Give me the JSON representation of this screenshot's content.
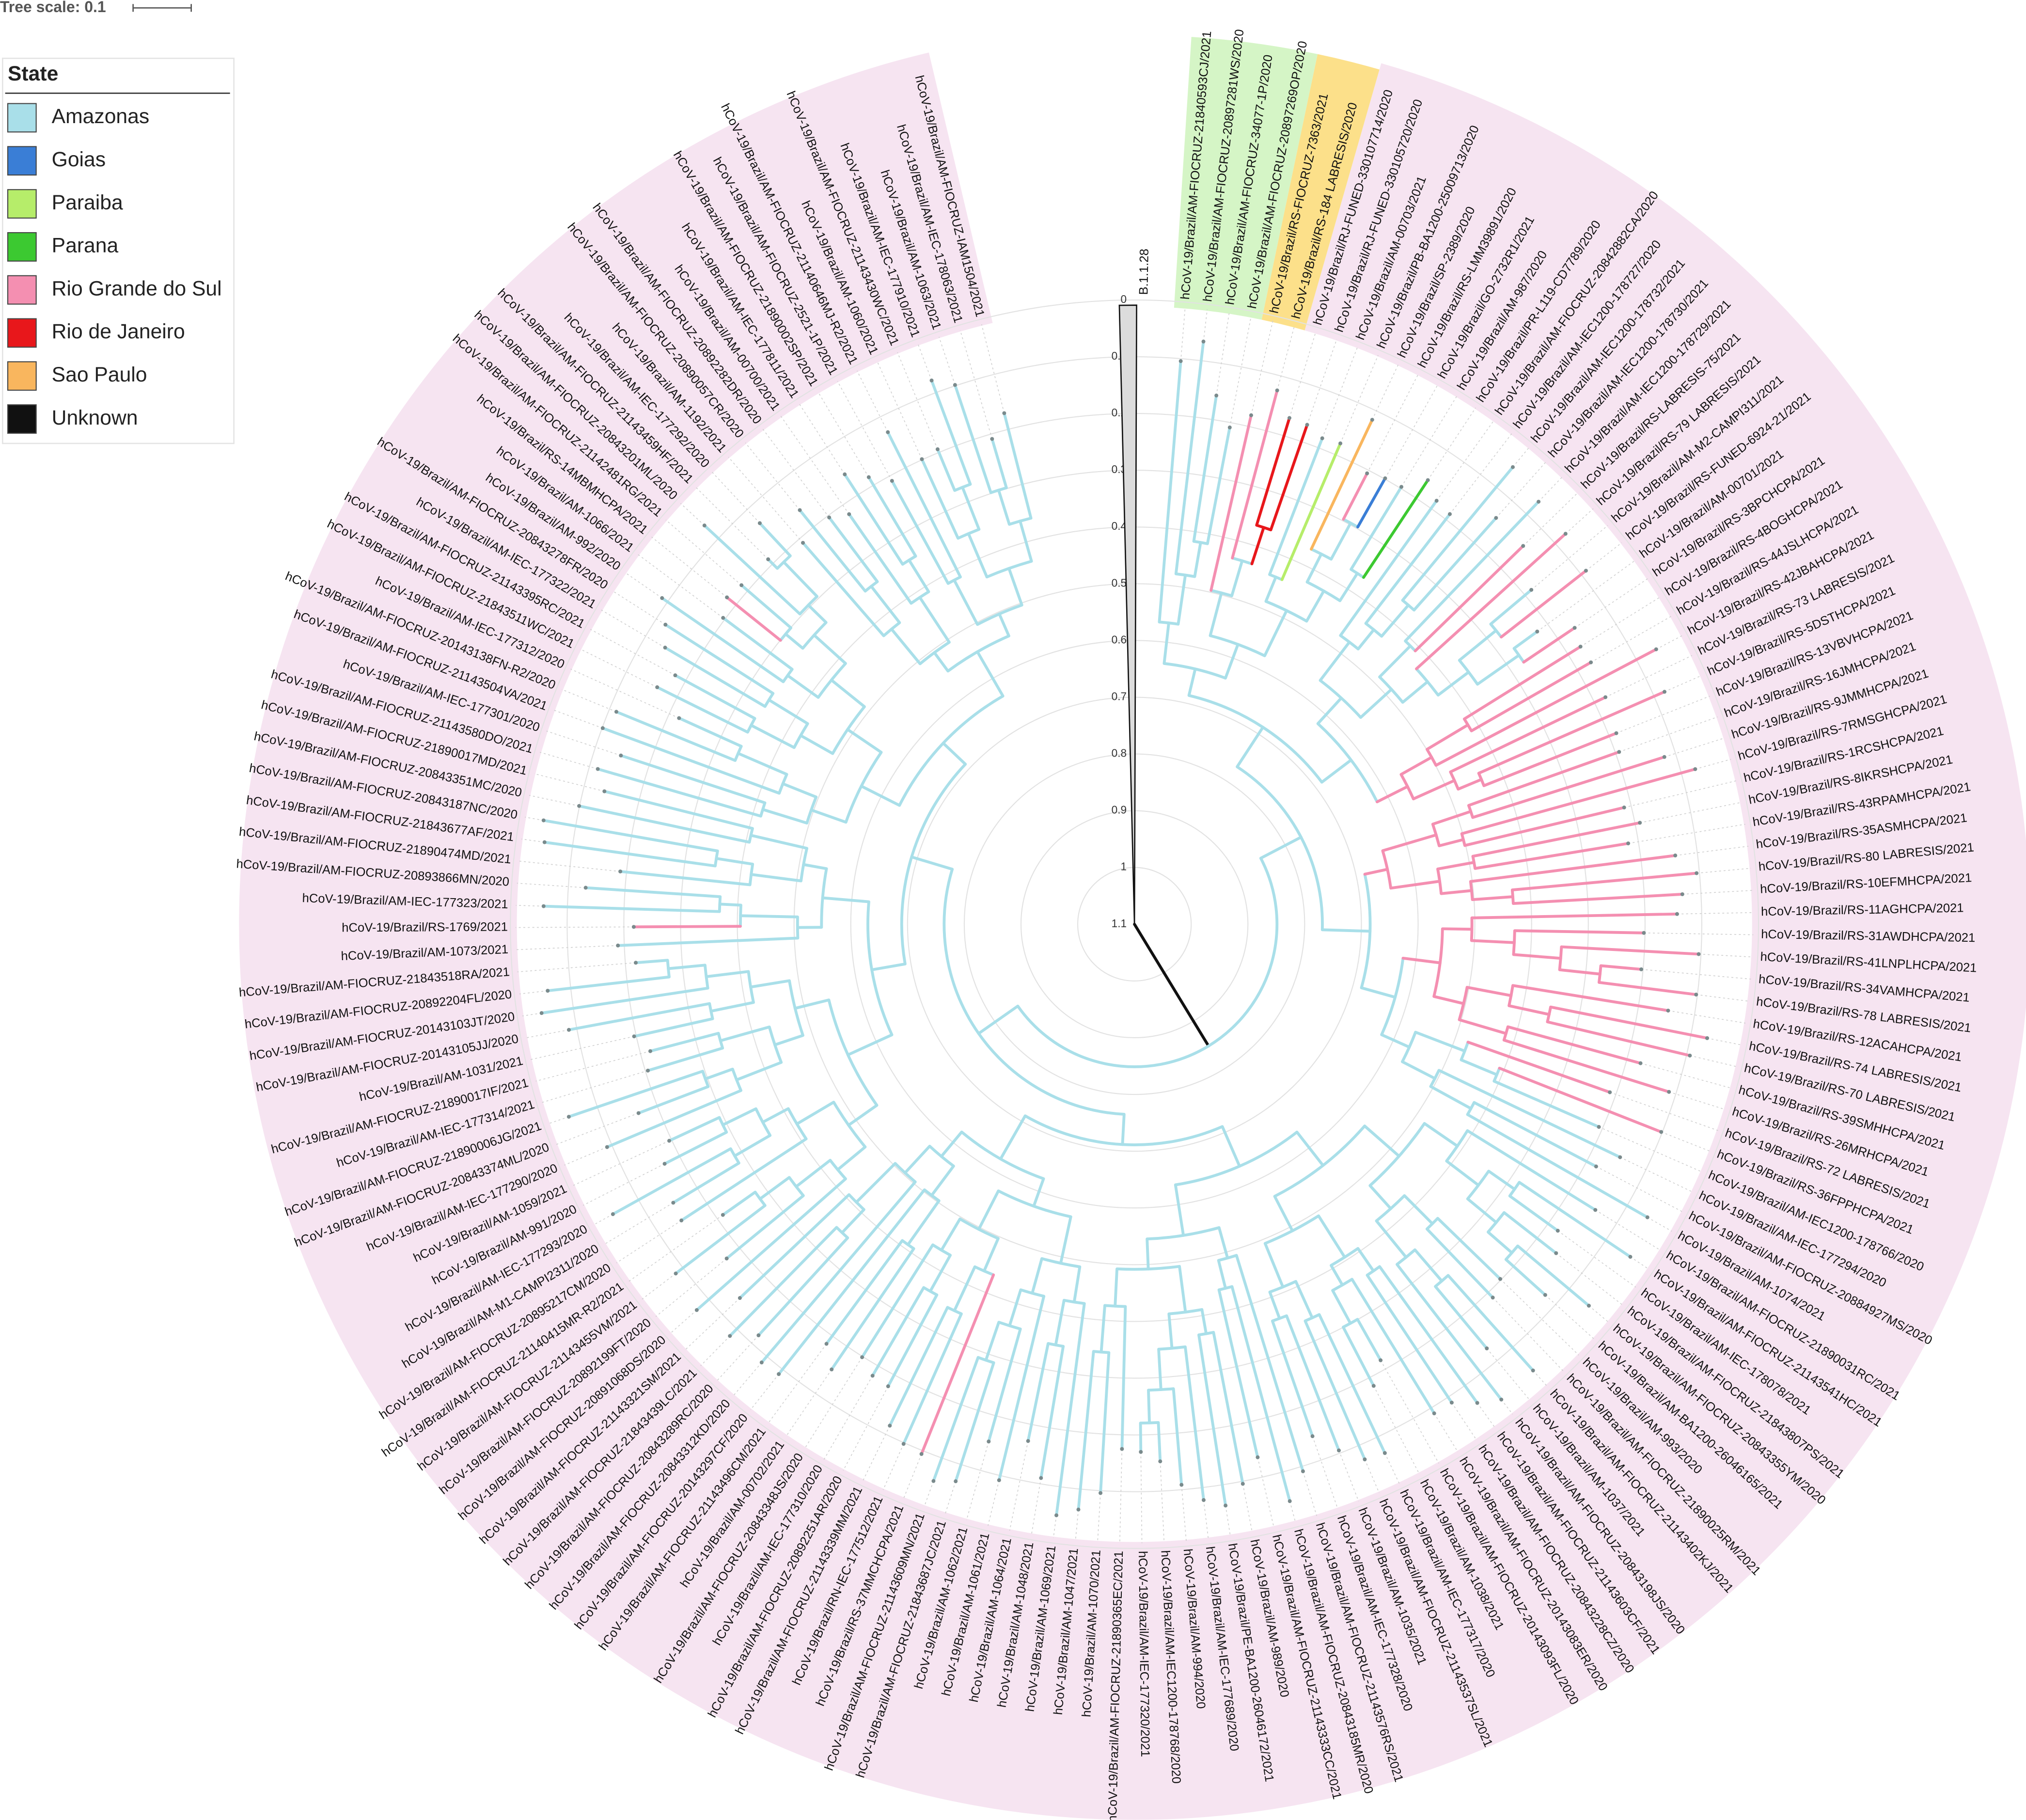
{
  "tree_scale": "Tree scale: 0.1",
  "legend": {
    "title": "State",
    "items": [
      {
        "label": "Amazonas",
        "color": "#a9dfe9"
      },
      {
        "label": "Goias",
        "color": "#3a7ed6"
      },
      {
        "label": "Paraiba",
        "color": "#b6ed6a"
      },
      {
        "label": "Parana",
        "color": "#3cc931"
      },
      {
        "label": "Rio Grande do Sul",
        "color": "#f48fb1"
      },
      {
        "label": "Rio de Janeiro",
        "color": "#e8171b"
      },
      {
        "label": "Sao Paulo",
        "color": "#f9b65e"
      },
      {
        "label": "Unknown",
        "color": "#111111"
      }
    ]
  },
  "outgroup": "B.1.1.28",
  "axis": {
    "range": [
      0,
      1.1
    ],
    "ticks": [
      0,
      0.1,
      0.2,
      0.3,
      0.4,
      0.5,
      0.6,
      0.7,
      0.8,
      0.9,
      1,
      1.1
    ]
  },
  "leaves": [
    {
      "label": "hCoV-19/Brazil/AM-FIOCRUZ-21840593CJ/2021",
      "color": "#a9dfe9"
    },
    {
      "label": "hCoV-19/Brazil/AM-FIOCRUZ-20897281WS/2020",
      "color": "#a9dfe9"
    },
    {
      "label": "hCoV-19/Brazil/AM-FIOCRUZ-34077-1P/2020",
      "color": "#a9dfe9"
    },
    {
      "label": "hCoV-19/Brazil/AM-FIOCRUZ-20897269OP/2020",
      "color": "#a9dfe9"
    },
    {
      "label": "hCoV-19/Brazil/RS-FIOCRUZ-7363/2021",
      "color": "#f48fb1"
    },
    {
      "label": "hCoV-19/Brazil/RS-184 LABRESIS/2020",
      "color": "#f48fb1"
    },
    {
      "label": "hCoV-19/Brazil/RJ-FUNED-330107714/2020",
      "color": "#e8171b"
    },
    {
      "label": "hCoV-19/Brazil/RJ-FUNED-330105720/2020",
      "color": "#e8171b"
    },
    {
      "label": "hCoV-19/Brazil/AM-00703/2021",
      "color": "#a9dfe9"
    },
    {
      "label": "hCoV-19/Brazil/PB-BA1200-25009713/2020",
      "color": "#b6ed6a"
    },
    {
      "label": "hCoV-19/Brazil/SP-2389/2020",
      "color": "#f9b65e"
    },
    {
      "label": "hCoV-19/Brazil/RS-LMM39891/2020",
      "color": "#f48fb1"
    },
    {
      "label": "hCoV-19/Brazil/GO-2732R1/2021",
      "color": "#3a7ed6"
    },
    {
      "label": "hCoV-19/Brazil/AM-987/2020",
      "color": "#a9dfe9"
    },
    {
      "label": "hCoV-19/Brazil/PR-L119-CD7789/2020",
      "color": "#3cc931"
    },
    {
      "label": "hCoV-19/Brazil/AM-FIOCRUZ-20842882CA/2020",
      "color": "#a9dfe9"
    },
    {
      "label": "hCoV-19/Brazil/AM-IEC1200-178727/2020",
      "color": "#a9dfe9"
    },
    {
      "label": "hCoV-19/Brazil/AM-IEC1200-178732/2021",
      "color": "#a9dfe9"
    },
    {
      "label": "hCoV-19/Brazil/AM-IEC1200-178730/2021",
      "color": "#a9dfe9"
    },
    {
      "label": "hCoV-19/Brazil/AM-IEC1200-178729/2021",
      "color": "#a9dfe9"
    },
    {
      "label": "hCoV-19/Brazil/RS-LABRESIS-75/2021",
      "color": "#f48fb1"
    },
    {
      "label": "hCoV-19/Brazil/RS-79 LABRESIS/2021",
      "color": "#f48fb1"
    },
    {
      "label": "hCoV-19/Brazil/AM-M2-CAMPI311/2021",
      "color": "#a9dfe9"
    },
    {
      "label": "hCoV-19/Brazil/RS-FUNED-6924-21/2021",
      "color": "#f48fb1"
    },
    {
      "label": "hCoV-19/Brazil/AM-00701/2021",
      "color": "#a9dfe9"
    },
    {
      "label": "hCoV-19/Brazil/RS-3BPCHCPA/2021",
      "color": "#f48fb1"
    },
    {
      "label": "hCoV-19/Brazil/RS-4BOGHCPA/2021",
      "color": "#f48fb1"
    },
    {
      "label": "hCoV-19/Brazil/RS-44JSLHCPA/2021",
      "color": "#f48fb1"
    },
    {
      "label": "hCoV-19/Brazil/RS-42JBAHCPA/2021",
      "color": "#f48fb1"
    },
    {
      "label": "hCoV-19/Brazil/RS-73 LABRESIS/2021",
      "color": "#f48fb1"
    },
    {
      "label": "hCoV-19/Brazil/RS-5DSTHCPA/2021",
      "color": "#f48fb1"
    },
    {
      "label": "hCoV-19/Brazil/RS-13VBVHCPA/2021",
      "color": "#f48fb1"
    },
    {
      "label": "hCoV-19/Brazil/RS-16JMHCPA/2021",
      "color": "#f48fb1"
    },
    {
      "label": "hCoV-19/Brazil/RS-9JMMHCPA/2021",
      "color": "#f48fb1"
    },
    {
      "label": "hCoV-19/Brazil/RS-7RMSGHCPA/2021",
      "color": "#f48fb1"
    },
    {
      "label": "hCoV-19/Brazil/RS-1RCSHCPA/2021",
      "color": "#f48fb1"
    },
    {
      "label": "hCoV-19/Brazil/RS-8IKRSHCPA/2021",
      "color": "#f48fb1"
    },
    {
      "label": "hCoV-19/Brazil/RS-43RPAMHCPA/2021",
      "color": "#f48fb1"
    },
    {
      "label": "hCoV-19/Brazil/RS-35ASMHCPA/2021",
      "color": "#f48fb1"
    },
    {
      "label": "hCoV-19/Brazil/RS-80 LABRESIS/2021",
      "color": "#f48fb1"
    },
    {
      "label": "hCoV-19/Brazil/RS-10EFMHCPA/2021",
      "color": "#f48fb1"
    },
    {
      "label": "hCoV-19/Brazil/RS-11AGHCPA/2021",
      "color": "#f48fb1"
    },
    {
      "label": "hCoV-19/Brazil/RS-31AWDHCPA/2021",
      "color": "#f48fb1"
    },
    {
      "label": "hCoV-19/Brazil/RS-41LNPLHCPA/2021",
      "color": "#f48fb1"
    },
    {
      "label": "hCoV-19/Brazil/RS-34VAMHCPA/2021",
      "color": "#f48fb1"
    },
    {
      "label": "hCoV-19/Brazil/RS-78 LABRESIS/2021",
      "color": "#f48fb1"
    },
    {
      "label": "hCoV-19/Brazil/RS-12ACAHCPA/2021",
      "color": "#f48fb1"
    },
    {
      "label": "hCoV-19/Brazil/RS-74 LABRESIS/2021",
      "color": "#f48fb1"
    },
    {
      "label": "hCoV-19/Brazil/RS-70 LABRESIS/2021",
      "color": "#f48fb1"
    },
    {
      "label": "hCoV-19/Brazil/RS-39SMHHCPA/2021",
      "color": "#f48fb1"
    },
    {
      "label": "hCoV-19/Brazil/RS-26MRHCPA/2021",
      "color": "#f48fb1"
    },
    {
      "label": "hCoV-19/Brazil/RS-72 LABRESIS/2021",
      "color": "#f48fb1"
    },
    {
      "label": "hCoV-19/Brazil/RS-36FPPHCPA/2021",
      "color": "#f48fb1"
    },
    {
      "label": "hCoV-19/Brazil/AM-IEC1200-178766/2020",
      "color": "#a9dfe9"
    },
    {
      "label": "hCoV-19/Brazil/AM-IEC-177294/2020",
      "color": "#a9dfe9"
    },
    {
      "label": "hCoV-19/Brazil/AM-FIOCRUZ-20884927MS/2020",
      "color": "#a9dfe9"
    },
    {
      "label": "hCoV-19/Brazil/AM-1074/2021",
      "color": "#a9dfe9"
    },
    {
      "label": "hCoV-19/Brazil/AM-FIOCRUZ-21890031RC/2021",
      "color": "#a9dfe9"
    },
    {
      "label": "hCoV-19/Brazil/AM-FIOCRUZ-21143541HC/2021",
      "color": "#a9dfe9"
    },
    {
      "label": "hCoV-19/Brazil/AM-IEC-178078/2021",
      "color": "#a9dfe9"
    },
    {
      "label": "hCoV-19/Brazil/AM-FIOCRUZ-21843807PS/2021",
      "color": "#a9dfe9"
    },
    {
      "label": "hCoV-19/Brazil/AM-FIOCRUZ-20843355YM/2020",
      "color": "#a9dfe9"
    },
    {
      "label": "hCoV-19/Brazil/AM-BA1200-26046165/2021",
      "color": "#a9dfe9"
    },
    {
      "label": "hCoV-19/Brazil/AM-993/2020",
      "color": "#a9dfe9"
    },
    {
      "label": "hCoV-19/Brazil/AM-FIOCRUZ-21890025RM/2021",
      "color": "#a9dfe9"
    },
    {
      "label": "hCoV-19/Brazil/AM-FIOCRUZ-21143402KJ/2021",
      "color": "#a9dfe9"
    },
    {
      "label": "hCoV-19/Brazil/AM-1037/2021",
      "color": "#a9dfe9"
    },
    {
      "label": "hCoV-19/Brazil/AM-FIOCRUZ-20843198JS/2020",
      "color": "#a9dfe9"
    },
    {
      "label": "hCoV-19/Brazil/AM-FIOCRUZ-21143603CF/2021",
      "color": "#a9dfe9"
    },
    {
      "label": "hCoV-19/Brazil/AM-FIOCRUZ-20843228CZ/2020",
      "color": "#a9dfe9"
    },
    {
      "label": "hCoV-19/Brazil/AM-FIOCRUZ-20143083ER/2020",
      "color": "#a9dfe9"
    },
    {
      "label": "hCoV-19/Brazil/AM-FIOCRUZ-20143093FL/2020",
      "color": "#a9dfe9"
    },
    {
      "label": "hCoV-19/Brazil/AM-1038/2021",
      "color": "#a9dfe9"
    },
    {
      "label": "hCoV-19/Brazil/AM-IEC-177317/2020",
      "color": "#a9dfe9"
    },
    {
      "label": "hCoV-19/Brazil/AM-FIOCRUZ-21143537SL/2021",
      "color": "#a9dfe9"
    },
    {
      "label": "hCoV-19/Brazil/AM-1035/2021",
      "color": "#a9dfe9"
    },
    {
      "label": "hCoV-19/Brazil/AM-IEC-177328/2020",
      "color": "#a9dfe9"
    },
    {
      "label": "hCoV-19/Brazil/AM-FIOCRUZ-21143576RS/2021",
      "color": "#a9dfe9"
    },
    {
      "label": "hCoV-19/Brazil/AM-FIOCRUZ-20843185MR/2020",
      "color": "#a9dfe9"
    },
    {
      "label": "hCoV-19/Brazil/AM-FIOCRUZ-21143333CC/2021",
      "color": "#a9dfe9"
    },
    {
      "label": "hCoV-19/Brazil/AM-989/2020",
      "color": "#a9dfe9"
    },
    {
      "label": "hCoV-19/Brazil/PE-BA1200-26046172/2021",
      "color": "#a9dfe9"
    },
    {
      "label": "hCoV-19/Brazil/AM-IEC-177689/2020",
      "color": "#a9dfe9"
    },
    {
      "label": "hCoV-19/Brazil/AM-994/2020",
      "color": "#a9dfe9"
    },
    {
      "label": "hCoV-19/Brazil/AM-IEC1200-178768/2020",
      "color": "#a9dfe9"
    },
    {
      "label": "hCoV-19/Brazil/AM-IEC-177320/2021",
      "color": "#a9dfe9"
    },
    {
      "label": "hCoV-19/Brazil/AM-FIOCRUZ-21890365EC/2021",
      "color": "#a9dfe9"
    },
    {
      "label": "hCoV-19/Brazil/AM-1070/2021",
      "color": "#a9dfe9"
    },
    {
      "label": "hCoV-19/Brazil/AM-1047/2021",
      "color": "#a9dfe9"
    },
    {
      "label": "hCoV-19/Brazil/AM-1069/2021",
      "color": "#a9dfe9"
    },
    {
      "label": "hCoV-19/Brazil/AM-1048/2021",
      "color": "#a9dfe9"
    },
    {
      "label": "hCoV-19/Brazil/AM-1064/2021",
      "color": "#a9dfe9"
    },
    {
      "label": "hCoV-19/Brazil/AM-1061/2021",
      "color": "#a9dfe9"
    },
    {
      "label": "hCoV-19/Brazil/AM-1062/2021",
      "color": "#a9dfe9"
    },
    {
      "label": "hCoV-19/Brazil/AM-FIOCRUZ-21843687JC/2021",
      "color": "#a9dfe9"
    },
    {
      "label": "hCoV-19/Brazil/AM-FIOCRUZ-21143609MN/2021",
      "color": "#a9dfe9"
    },
    {
      "label": "hCoV-19/Brazil/RS-37MMCHCPA/2021",
      "color": "#f48fb1"
    },
    {
      "label": "hCoV-19/Brazil/RN-IEC-177512/2021",
      "color": "#a9dfe9"
    },
    {
      "label": "hCoV-19/Brazil/AM-FIOCRUZ-21143339MM/2021",
      "color": "#a9dfe9"
    },
    {
      "label": "hCoV-19/Brazil/AM-FIOCRUZ-20892251AR/2020",
      "color": "#a9dfe9"
    },
    {
      "label": "hCoV-19/Brazil/AM-IEC-177310/2020",
      "color": "#a9dfe9"
    },
    {
      "label": "hCoV-19/Brazil/AM-FIOCRUZ-20843348JS/2020",
      "color": "#a9dfe9"
    },
    {
      "label": "hCoV-19/Brazil/AM-00702/2021",
      "color": "#a9dfe9"
    },
    {
      "label": "hCoV-19/Brazil/AM-FIOCRUZ-21143496CM/2021",
      "color": "#a9dfe9"
    },
    {
      "label": "hCoV-19/Brazil/AM-FIOCRUZ-20143297CF/2020",
      "color": "#a9dfe9"
    },
    {
      "label": "hCoV-19/Brazil/AM-FIOCRUZ-20843312KD/2020",
      "color": "#a9dfe9"
    },
    {
      "label": "hCoV-19/Brazil/AM-FIOCRUZ-20843289RC/2020",
      "color": "#a9dfe9"
    },
    {
      "label": "hCoV-19/Brazil/AM-FIOCRUZ-21843439LC/2021",
      "color": "#a9dfe9"
    },
    {
      "label": "hCoV-19/Brazil/AM-FIOCRUZ-21143321SM/2021",
      "color": "#a9dfe9"
    },
    {
      "label": "hCoV-19/Brazil/AM-FIOCRUZ-20891068DS/2020",
      "color": "#a9dfe9"
    },
    {
      "label": "hCoV-19/Brazil/AM-FIOCRUZ-20892199FT/2020",
      "color": "#a9dfe9"
    },
    {
      "label": "hCoV-19/Brazil/AM-FIOCRUZ-21143455VM/2021",
      "color": "#a9dfe9"
    },
    {
      "label": "hCoV-19/Brazil/AM-FIOCRUZ-21140415MR-R2/2021",
      "color": "#a9dfe9"
    },
    {
      "label": "hCoV-19/Brazil/AM-FIOCRUZ-20895217CM/2020",
      "color": "#a9dfe9"
    },
    {
      "label": "hCoV-19/Brazil/AM-M1-CAMPI2311/2020",
      "color": "#a9dfe9"
    },
    {
      "label": "hCoV-19/Brazil/AM-IEC-177293/2020",
      "color": "#a9dfe9"
    },
    {
      "label": "hCoV-19/Brazil/AM-991/2020",
      "color": "#a9dfe9"
    },
    {
      "label": "hCoV-19/Brazil/AM-1059/2021",
      "color": "#a9dfe9"
    },
    {
      "label": "hCoV-19/Brazil/AM-IEC-177290/2020",
      "color": "#a9dfe9"
    },
    {
      "label": "hCoV-19/Brazil/AM-FIOCRUZ-20843374ML/2020",
      "color": "#a9dfe9"
    },
    {
      "label": "hCoV-19/Brazil/AM-FIOCRUZ-21890006JG/2021",
      "color": "#a9dfe9"
    },
    {
      "label": "hCoV-19/Brazil/AM-IEC-177314/2021",
      "color": "#a9dfe9"
    },
    {
      "label": "hCoV-19/Brazil/AM-FIOCRUZ-21890017IF/2021",
      "color": "#a9dfe9"
    },
    {
      "label": "hCoV-19/Brazil/AM-1031/2021",
      "color": "#a9dfe9"
    },
    {
      "label": "hCoV-19/Brazil/AM-FIOCRUZ-20143105JJ/2020",
      "color": "#a9dfe9"
    },
    {
      "label": "hCoV-19/Brazil/AM-FIOCRUZ-20143103JT/2020",
      "color": "#a9dfe9"
    },
    {
      "label": "hCoV-19/Brazil/AM-FIOCRUZ-20892204FL/2020",
      "color": "#a9dfe9"
    },
    {
      "label": "hCoV-19/Brazil/AM-FIOCRUZ-21843518RA/2021",
      "color": "#a9dfe9"
    },
    {
      "label": "hCoV-19/Brazil/AM-1073/2021",
      "color": "#a9dfe9"
    },
    {
      "label": "hCoV-19/Brazil/RS-1769/2021",
      "color": "#f48fb1"
    },
    {
      "label": "hCoV-19/Brazil/AM-IEC-177323/2021",
      "color": "#a9dfe9"
    },
    {
      "label": "hCoV-19/Brazil/AM-FIOCRUZ-20893866MN/2020",
      "color": "#a9dfe9"
    },
    {
      "label": "hCoV-19/Brazil/AM-FIOCRUZ-21890474MD/2021",
      "color": "#a9dfe9"
    },
    {
      "label": "hCoV-19/Brazil/AM-FIOCRUZ-21843677AF/2021",
      "color": "#a9dfe9"
    },
    {
      "label": "hCoV-19/Brazil/AM-FIOCRUZ-20843187NC/2020",
      "color": "#a9dfe9"
    },
    {
      "label": "hCoV-19/Brazil/AM-FIOCRUZ-20843351MC/2020",
      "color": "#a9dfe9"
    },
    {
      "label": "hCoV-19/Brazil/AM-FIOCRUZ-21890017MD/2021",
      "color": "#a9dfe9"
    },
    {
      "label": "hCoV-19/Brazil/AM-FIOCRUZ-21143580DO/2021",
      "color": "#a9dfe9"
    },
    {
      "label": "hCoV-19/Brazil/AM-IEC-177301/2020",
      "color": "#a9dfe9"
    },
    {
      "label": "hCoV-19/Brazil/AM-FIOCRUZ-21143504VA/2021",
      "color": "#a9dfe9"
    },
    {
      "label": "hCoV-19/Brazil/AM-FIOCRUZ-20143138FN-R2/2020",
      "color": "#a9dfe9"
    },
    {
      "label": "hCoV-19/Brazil/AM-IEC-177312/2020",
      "color": "#a9dfe9"
    },
    {
      "label": "hCoV-19/Brazil/AM-FIOCRUZ-21843511WC/2021",
      "color": "#a9dfe9"
    },
    {
      "label": "hCoV-19/Brazil/AM-FIOCRUZ-21143395RC/2021",
      "color": "#a9dfe9"
    },
    {
      "label": "hCoV-19/Brazil/AM-IEC-177322/2021",
      "color": "#a9dfe9"
    },
    {
      "label": "hCoV-19/Brazil/AM-FIOCRUZ-20843278FR/2020",
      "color": "#a9dfe9"
    },
    {
      "label": "hCoV-19/Brazil/AM-992/2020",
      "color": "#a9dfe9"
    },
    {
      "label": "hCoV-19/Brazil/AM-1066/2021",
      "color": "#a9dfe9"
    },
    {
      "label": "hCoV-19/Brazil/RS-14MBMHCPA/2021",
      "color": "#f48fb1"
    },
    {
      "label": "hCoV-19/Brazil/AM-FIOCRUZ-21142481RG/2021",
      "color": "#a9dfe9"
    },
    {
      "label": "hCoV-19/Brazil/AM-FIOCRUZ-20843201ML/2020",
      "color": "#a9dfe9"
    },
    {
      "label": "hCoV-19/Brazil/AM-FIOCRUZ-21143459HF/2021",
      "color": "#a9dfe9"
    },
    {
      "label": "hCoV-19/Brazil/AM-IEC-177292/2020",
      "color": "#a9dfe9"
    },
    {
      "label": "hCoV-19/Brazil/AM-1192/2021",
      "color": "#a9dfe9"
    },
    {
      "label": "hCoV-19/Brazil/AM-FIOCRUZ-20890057CR/2020",
      "color": "#a9dfe9"
    },
    {
      "label": "hCoV-19/Brazil/AM-FIOCRUZ-20892282DR/2020",
      "color": "#a9dfe9"
    },
    {
      "label": "hCoV-19/Brazil/AM-00700/2021",
      "color": "#a9dfe9"
    },
    {
      "label": "hCoV-19/Brazil/AM-IEC-177811/2021",
      "color": "#a9dfe9"
    },
    {
      "label": "hCoV-19/Brazil/AM-FIOCRUZ-21890002SP/2021",
      "color": "#a9dfe9"
    },
    {
      "label": "hCoV-19/Brazil/AM-FIOCRUZ-2521-1P/2021",
      "color": "#a9dfe9"
    },
    {
      "label": "hCoV-19/Brazil/AM-FIOCRUZ-21140646MJ-R2/2021",
      "color": "#a9dfe9"
    },
    {
      "label": "hCoV-19/Brazil/AM-1060/2021",
      "color": "#a9dfe9"
    },
    {
      "label": "hCoV-19/Brazil/AM-FIOCRUZ-21143430WC/2021",
      "color": "#a9dfe9"
    },
    {
      "label": "hCoV-19/Brazil/AM-IEC-177910/2021",
      "color": "#a9dfe9"
    },
    {
      "label": "hCoV-19/Brazil/AM-1063/2021",
      "color": "#a9dfe9"
    },
    {
      "label": "hCoV-19/Brazil/AM-IEC-178063/2021",
      "color": "#a9dfe9"
    },
    {
      "label": "hCoV-19/Brazil/AM-FIOCRUZ-IAM1504/2021",
      "color": "#a9dfe9"
    }
  ]
}
